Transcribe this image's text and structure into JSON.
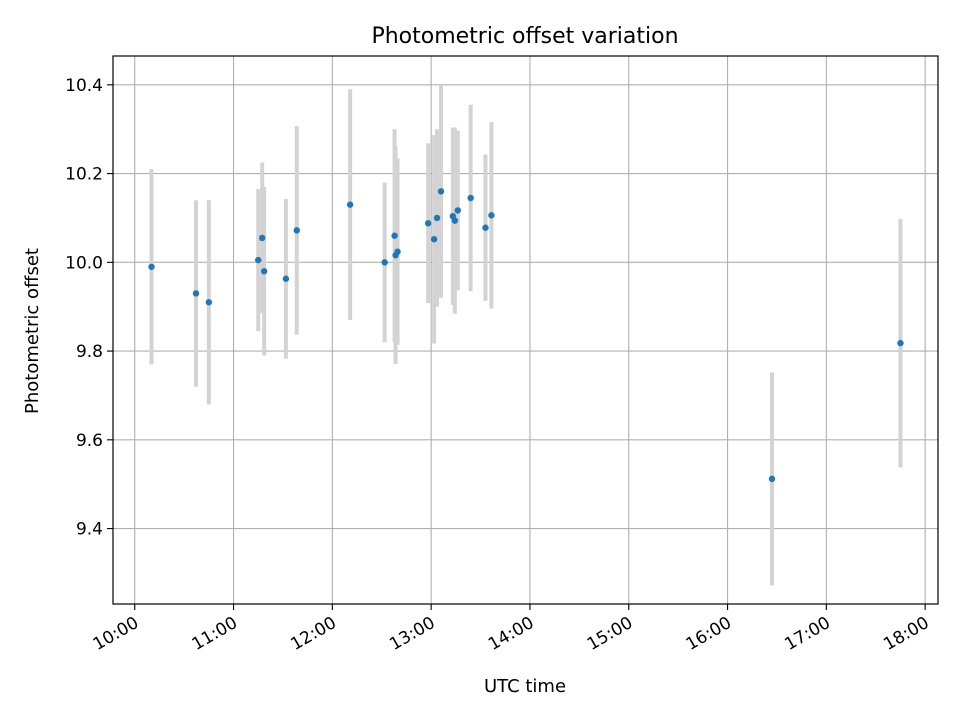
{
  "chart_data": {
    "type": "scatter",
    "title": "Photometric offset variation",
    "xlabel": "UTC time",
    "ylabel": "Photometric offset",
    "x_unit": "hours",
    "xlim": [
      9.78,
      18.13
    ],
    "ylim": [
      9.23,
      10.465
    ],
    "x_ticks": [
      {
        "value": 10,
        "label": "10:00"
      },
      {
        "value": 11,
        "label": "11:00"
      },
      {
        "value": 12,
        "label": "12:00"
      },
      {
        "value": 13,
        "label": "13:00"
      },
      {
        "value": 14,
        "label": "14:00"
      },
      {
        "value": 15,
        "label": "15:00"
      },
      {
        "value": 16,
        "label": "16:00"
      },
      {
        "value": 17,
        "label": "17:00"
      },
      {
        "value": 18,
        "label": "18:00"
      }
    ],
    "y_ticks": [
      {
        "value": 9.4,
        "label": "9.4"
      },
      {
        "value": 9.6,
        "label": "9.6"
      },
      {
        "value": 9.8,
        "label": "9.8"
      },
      {
        "value": 10.0,
        "label": "10.0"
      },
      {
        "value": 10.2,
        "label": "10.2"
      },
      {
        "value": 10.4,
        "label": "10.4"
      }
    ],
    "grid": true,
    "marker_color": "#1f77b4",
    "errorbar_color": "#d3d3d3",
    "points": [
      {
        "time": "10:10",
        "x": 10.17,
        "y": 9.99,
        "err": 0.22
      },
      {
        "time": "10:37",
        "x": 10.62,
        "y": 9.93,
        "err": 0.21
      },
      {
        "time": "10:45",
        "x": 10.75,
        "y": 9.91,
        "err": 0.23
      },
      {
        "time": "11:15",
        "x": 11.25,
        "y": 10.005,
        "err": 0.16
      },
      {
        "time": "11:17",
        "x": 11.29,
        "y": 10.055,
        "err": 0.17
      },
      {
        "time": "11:19",
        "x": 11.31,
        "y": 9.98,
        "err": 0.19
      },
      {
        "time": "11:32",
        "x": 11.53,
        "y": 9.963,
        "err": 0.18
      },
      {
        "time": "11:38",
        "x": 11.64,
        "y": 10.072,
        "err": 0.235
      },
      {
        "time": "12:11",
        "x": 12.18,
        "y": 10.13,
        "err": 0.26
      },
      {
        "time": "12:32",
        "x": 12.53,
        "y": 10.0,
        "err": 0.18
      },
      {
        "time": "12:37",
        "x": 12.63,
        "y": 10.06,
        "err": 0.24
      },
      {
        "time": "12:38",
        "x": 12.64,
        "y": 10.016,
        "err": 0.245
      },
      {
        "time": "12:39",
        "x": 12.66,
        "y": 10.024,
        "err": 0.21
      },
      {
        "time": "12:58",
        "x": 12.97,
        "y": 10.088,
        "err": 0.18
      },
      {
        "time": "13:01",
        "x": 13.03,
        "y": 10.052,
        "err": 0.235
      },
      {
        "time": "13:04",
        "x": 13.06,
        "y": 10.1,
        "err": 0.2
      },
      {
        "time": "13:06",
        "x": 13.1,
        "y": 10.16,
        "err": 0.24
      },
      {
        "time": "13:13",
        "x": 13.22,
        "y": 10.104,
        "err": 0.2
      },
      {
        "time": "13:14",
        "x": 13.24,
        "y": 10.094,
        "err": 0.21
      },
      {
        "time": "13:16",
        "x": 13.27,
        "y": 10.117,
        "err": 0.18
      },
      {
        "time": "13:24",
        "x": 13.4,
        "y": 10.145,
        "err": 0.21
      },
      {
        "time": "13:33",
        "x": 13.55,
        "y": 10.078,
        "err": 0.165
      },
      {
        "time": "13:37",
        "x": 13.61,
        "y": 10.106,
        "err": 0.21
      },
      {
        "time": "16:27",
        "x": 16.45,
        "y": 9.512,
        "err": 0.24
      },
      {
        "time": "17:45",
        "x": 17.75,
        "y": 9.818,
        "err": 0.28
      }
    ]
  }
}
